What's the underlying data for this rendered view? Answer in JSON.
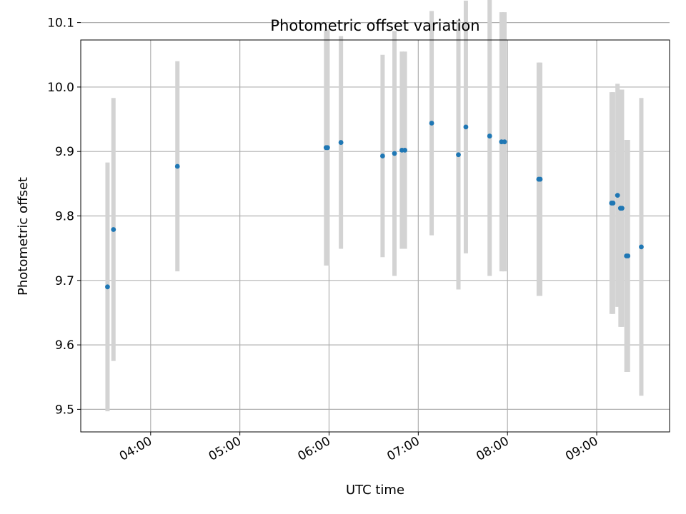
{
  "chart_data": {
    "type": "scatter",
    "title": "Photometric offset variation",
    "xlabel": "UTC time",
    "ylabel": "Photometric offset",
    "x_ticks": [
      "04:00",
      "05:00",
      "06:00",
      "07:00",
      "08:00",
      "09:00"
    ],
    "y_ticks": [
      "9.5",
      "9.6",
      "9.7",
      "9.8",
      "9.9",
      "10.0",
      "10.1"
    ],
    "x_range": [
      "03:13",
      "09:49"
    ],
    "ylim": [
      9.465,
      10.073
    ],
    "grid": true,
    "errorbar_color": "#d3d3d3",
    "point_color": "#1f77b4",
    "points": [
      {
        "time": "03:31",
        "y": 9.69,
        "err": 0.193
      },
      {
        "time": "03:35",
        "y": 9.779,
        "err": 0.204
      },
      {
        "time": "04:18",
        "y": 9.877,
        "err": 0.163
      },
      {
        "time": "05:58",
        "y": 9.906,
        "err": 0.183
      },
      {
        "time": "05:59",
        "y": 9.906,
        "err": 0.183
      },
      {
        "time": "06:08",
        "y": 9.914,
        "err": 0.165
      },
      {
        "time": "06:36",
        "y": 9.893,
        "err": 0.157
      },
      {
        "time": "06:44",
        "y": 9.897,
        "err": 0.19
      },
      {
        "time": "06:49",
        "y": 9.902,
        "err": 0.153
      },
      {
        "time": "06:51",
        "y": 9.902,
        "err": 0.153
      },
      {
        "time": "07:09",
        "y": 9.944,
        "err": 0.174
      },
      {
        "time": "07:27",
        "y": 9.895,
        "err": 0.209
      },
      {
        "time": "07:32",
        "y": 9.938,
        "err": 0.196
      },
      {
        "time": "07:48",
        "y": 9.924,
        "err": 0.217
      },
      {
        "time": "07:56",
        "y": 9.915,
        "err": 0.201
      },
      {
        "time": "07:58",
        "y": 9.915,
        "err": 0.201
      },
      {
        "time": "08:21",
        "y": 9.857,
        "err": 0.181
      },
      {
        "time": "08:22",
        "y": 9.857,
        "err": 0.181
      },
      {
        "time": "09:10",
        "y": 9.82,
        "err": 0.172
      },
      {
        "time": "09:11",
        "y": 9.82,
        "err": 0.172
      },
      {
        "time": "09:14",
        "y": 9.832,
        "err": 0.173
      },
      {
        "time": "09:16",
        "y": 9.812,
        "err": 0.184
      },
      {
        "time": "09:17",
        "y": 9.812,
        "err": 0.184
      },
      {
        "time": "09:20",
        "y": 9.738,
        "err": 0.18
      },
      {
        "time": "09:21",
        "y": 9.738,
        "err": 0.18
      },
      {
        "time": "09:30",
        "y": 9.752,
        "err": 0.231
      }
    ]
  }
}
